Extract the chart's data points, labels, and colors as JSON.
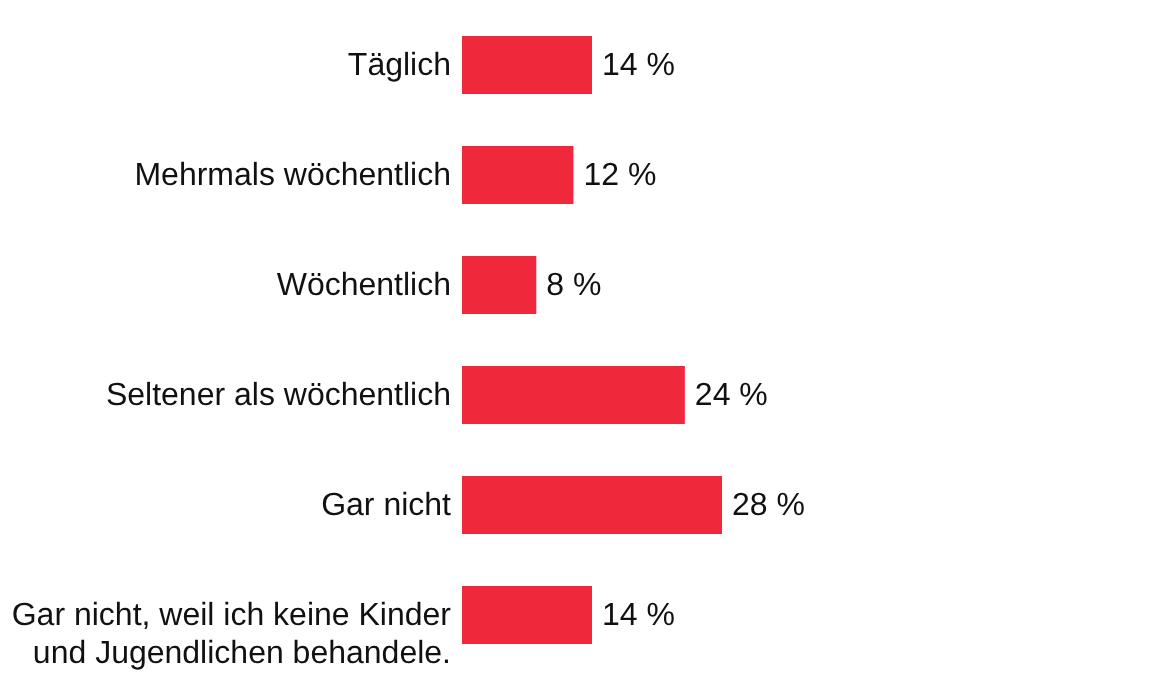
{
  "chart_data": {
    "type": "bar",
    "orientation": "horizontal",
    "categories": [
      "Täglich",
      "Mehrmals wöchentlich",
      "Wöchentlich",
      "Seltener als wöchentlich",
      "Gar nicht",
      "Gar nicht, weil ich keine Kinder und Jugendlichen behandele."
    ],
    "values": [
      14,
      12,
      8,
      24,
      28,
      14
    ],
    "value_labels": [
      "14 %",
      "12 %",
      "8 %",
      "24 %",
      "28 %",
      "14 %"
    ],
    "color": "#f0283c"
  }
}
